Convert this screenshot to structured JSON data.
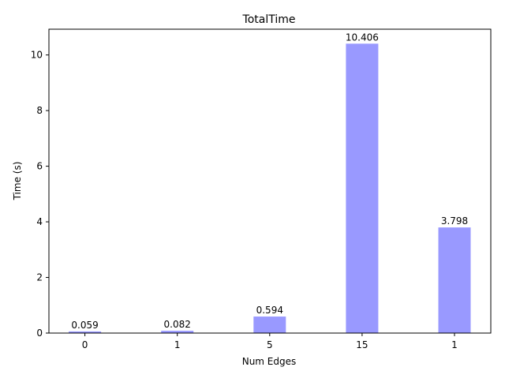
{
  "chart_data": {
    "type": "bar",
    "title": "TotalTime",
    "xlabel": "Num Edges",
    "ylabel": "Time (s)",
    "categories": [
      "0",
      "1",
      "5",
      "15",
      "1"
    ],
    "values": [
      0.059,
      0.082,
      0.594,
      10.406,
      3.798
    ],
    "value_labels": [
      "0.059",
      "0.082",
      "0.594",
      "10.406",
      "3.798"
    ],
    "ylim": [
      0,
      10.9263
    ],
    "yticks": [
      0,
      2,
      4,
      6,
      8,
      10
    ],
    "ytick_labels": [
      "0",
      "2",
      "4",
      "6",
      "8",
      "10"
    ],
    "grid": false,
    "colors": {
      "bar": "#9999ff",
      "axis": "#000000",
      "text": "#000000"
    }
  }
}
